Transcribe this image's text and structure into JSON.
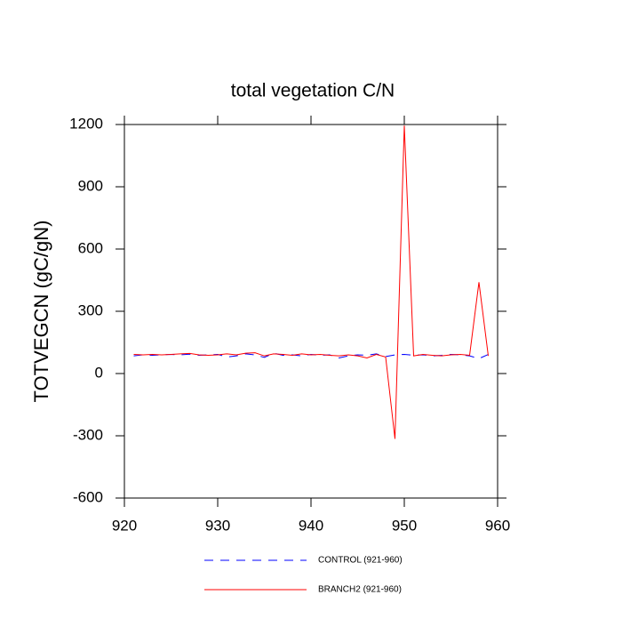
{
  "chart_data": {
    "type": "line",
    "title": "total vegetation C/N",
    "y_label": "TOTVEGCN  (gC/gN)",
    "x": [
      921,
      922,
      923,
      924,
      925,
      926,
      927,
      928,
      929,
      930,
      931,
      932,
      933,
      934,
      935,
      936,
      937,
      938,
      939,
      940,
      941,
      942,
      943,
      944,
      945,
      946,
      947,
      948,
      949,
      950,
      951,
      952,
      953,
      954,
      955,
      956,
      957,
      958,
      959
    ],
    "series": [
      {
        "name": "CONTROL (921-960)",
        "color": "#0000ff",
        "dash": true,
        "values": [
          85,
          90,
          88,
          90,
          92,
          90,
          93,
          88,
          90,
          92,
          80,
          85,
          95,
          90,
          78,
          98,
          88,
          90,
          85,
          92,
          88,
          90,
          75,
          85,
          90,
          88,
          95,
          82,
          90,
          92,
          88,
          90,
          85,
          88,
          92,
          90,
          85,
          72,
          92
        ]
      },
      {
        "name": "BRANCH2 (921-960)",
        "color": "#ff0000",
        "dash": false,
        "values": [
          92,
          90,
          92,
          90,
          92,
          95,
          97,
          90,
          88,
          90,
          95,
          90,
          98,
          100,
          85,
          95,
          92,
          88,
          95,
          90,
          92,
          88,
          85,
          90,
          85,
          75,
          92,
          80,
          -315,
          1195,
          85,
          92,
          88,
          85,
          90,
          92,
          88,
          440,
          85
        ]
      }
    ],
    "xlim": [
      920,
      960
    ],
    "xticks": [
      920,
      930,
      940,
      950,
      960
    ],
    "ylim": [
      -600,
      1200
    ],
    "yticks": [
      -600,
      -300,
      0,
      300,
      600,
      900,
      1200
    ]
  }
}
